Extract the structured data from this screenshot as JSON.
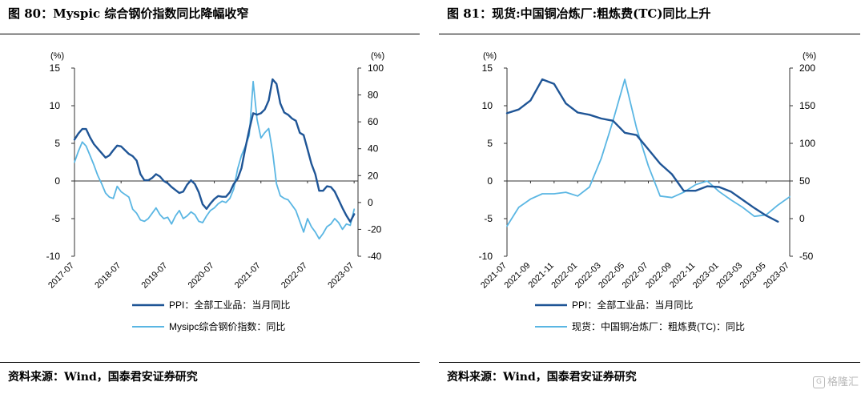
{
  "panels": [
    {
      "title": "图 80：Myspic 综合钢价指数同比降幅收窄",
      "source": "资料来源：Wind，国泰君安证券研究"
    },
    {
      "title": "图 81：现货:中国铜冶炼厂:粗炼费(TC)同比上升",
      "source": "资料来源：Wind，国泰君安证券研究"
    }
  ],
  "watermark": {
    "icon": "G",
    "text": "格隆汇"
  },
  "chart_data": [
    {
      "type": "line",
      "left_axis": {
        "unit": "(%)",
        "ylim": [
          -10,
          15
        ],
        "ticks": [
          -10,
          -5,
          0,
          5,
          10,
          15
        ]
      },
      "right_axis": {
        "unit": "(%)",
        "ylim": [
          -40,
          100
        ],
        "ticks": [
          -40,
          -20,
          0,
          20,
          40,
          60,
          80,
          100
        ]
      },
      "xlim": [
        "2017-07",
        "2023-08"
      ],
      "x_ticks": [
        "2017-07",
        "2018-07",
        "2019-07",
        "2020-07",
        "2021-07",
        "2022-07",
        "2023-07"
      ],
      "grid": false,
      "legend_position": "bottom",
      "colors": {
        "primary": "#1f5596",
        "secondary": "#5ab6e3"
      },
      "series": [
        {
          "name": "PPI：全部工业品：当月同比",
          "axis": "left",
          "color": "#1f5596",
          "points": [
            [
              "2017-07",
              5.5
            ],
            [
              "2017-08",
              6.3
            ],
            [
              "2017-09",
              6.9
            ],
            [
              "2017-10",
              6.9
            ],
            [
              "2017-11",
              5.8
            ],
            [
              "2017-12",
              4.9
            ],
            [
              "2018-01",
              4.3
            ],
            [
              "2018-02",
              3.7
            ],
            [
              "2018-03",
              3.1
            ],
            [
              "2018-04",
              3.4
            ],
            [
              "2018-05",
              4.1
            ],
            [
              "2018-06",
              4.7
            ],
            [
              "2018-07",
              4.6
            ],
            [
              "2018-08",
              4.1
            ],
            [
              "2018-09",
              3.6
            ],
            [
              "2018-10",
              3.3
            ],
            [
              "2018-11",
              2.7
            ],
            [
              "2018-12",
              0.9
            ],
            [
              "2019-01",
              0.1
            ],
            [
              "2019-02",
              0.1
            ],
            [
              "2019-03",
              0.4
            ],
            [
              "2019-04",
              0.9
            ],
            [
              "2019-05",
              0.6
            ],
            [
              "2019-06",
              0.0
            ],
            [
              "2019-07",
              -0.3
            ],
            [
              "2019-08",
              -0.8
            ],
            [
              "2019-09",
              -1.2
            ],
            [
              "2019-10",
              -1.6
            ],
            [
              "2019-11",
              -1.4
            ],
            [
              "2019-12",
              -0.5
            ],
            [
              "2020-01",
              0.1
            ],
            [
              "2020-02",
              -0.4
            ],
            [
              "2020-03",
              -1.5
            ],
            [
              "2020-04",
              -3.1
            ],
            [
              "2020-05",
              -3.7
            ],
            [
              "2020-06",
              -3.0
            ],
            [
              "2020-07",
              -2.4
            ],
            [
              "2020-08",
              -2.0
            ],
            [
              "2020-09",
              -2.1
            ],
            [
              "2020-10",
              -2.1
            ],
            [
              "2020-11",
              -1.5
            ],
            [
              "2020-12",
              -0.4
            ],
            [
              "2021-01",
              0.3
            ],
            [
              "2021-02",
              1.7
            ],
            [
              "2021-03",
              4.4
            ],
            [
              "2021-04",
              6.8
            ],
            [
              "2021-05",
              9.0
            ],
            [
              "2021-06",
              8.8
            ],
            [
              "2021-07",
              9.0
            ],
            [
              "2021-08",
              9.5
            ],
            [
              "2021-09",
              10.7
            ],
            [
              "2021-10",
              13.5
            ],
            [
              "2021-11",
              12.9
            ],
            [
              "2021-12",
              10.3
            ],
            [
              "2022-01",
              9.1
            ],
            [
              "2022-02",
              8.8
            ],
            [
              "2022-03",
              8.3
            ],
            [
              "2022-04",
              8.0
            ],
            [
              "2022-05",
              6.4
            ],
            [
              "2022-06",
              6.1
            ],
            [
              "2022-07",
              4.2
            ],
            [
              "2022-08",
              2.3
            ],
            [
              "2022-09",
              0.9
            ],
            [
              "2022-10",
              -1.3
            ],
            [
              "2022-11",
              -1.3
            ],
            [
              "2022-12",
              -0.7
            ],
            [
              "2023-01",
              -0.8
            ],
            [
              "2023-02",
              -1.4
            ],
            [
              "2023-03",
              -2.5
            ],
            [
              "2023-04",
              -3.6
            ],
            [
              "2023-05",
              -4.6
            ],
            [
              "2023-06",
              -5.4
            ],
            [
              "2023-07",
              -4.4
            ]
          ]
        },
        {
          "name": "Mysipc综合钢价指数：同比",
          "axis": "right",
          "color": "#5ab6e3",
          "points": [
            [
              "2017-07",
              30
            ],
            [
              "2017-08",
              38
            ],
            [
              "2017-09",
              45
            ],
            [
              "2017-10",
              42
            ],
            [
              "2017-11",
              35
            ],
            [
              "2017-12",
              28
            ],
            [
              "2018-01",
              20
            ],
            [
              "2018-02",
              14
            ],
            [
              "2018-03",
              7
            ],
            [
              "2018-04",
              4
            ],
            [
              "2018-05",
              3
            ],
            [
              "2018-06",
              12
            ],
            [
              "2018-07",
              8
            ],
            [
              "2018-08",
              6
            ],
            [
              "2018-09",
              4
            ],
            [
              "2018-10",
              -5
            ],
            [
              "2018-11",
              -8
            ],
            [
              "2018-12",
              -13
            ],
            [
              "2019-01",
              -14
            ],
            [
              "2019-02",
              -12
            ],
            [
              "2019-03",
              -8
            ],
            [
              "2019-04",
              -4
            ],
            [
              "2019-05",
              -9
            ],
            [
              "2019-06",
              -12
            ],
            [
              "2019-07",
              -11
            ],
            [
              "2019-08",
              -16
            ],
            [
              "2019-09",
              -10
            ],
            [
              "2019-10",
              -6
            ],
            [
              "2019-11",
              -12
            ],
            [
              "2019-12",
              -10
            ],
            [
              "2020-01",
              -7
            ],
            [
              "2020-02",
              -9
            ],
            [
              "2020-03",
              -14
            ],
            [
              "2020-04",
              -15
            ],
            [
              "2020-05",
              -10
            ],
            [
              "2020-06",
              -6
            ],
            [
              "2020-07",
              -4
            ],
            [
              "2020-08",
              -1
            ],
            [
              "2020-09",
              1
            ],
            [
              "2020-10",
              0
            ],
            [
              "2020-11",
              3
            ],
            [
              "2020-12",
              10
            ],
            [
              "2021-01",
              25
            ],
            [
              "2021-02",
              35
            ],
            [
              "2021-03",
              42
            ],
            [
              "2021-04",
              50
            ],
            [
              "2021-05",
              90
            ],
            [
              "2021-06",
              62
            ],
            [
              "2021-07",
              48
            ],
            [
              "2021-08",
              52
            ],
            [
              "2021-09",
              55
            ],
            [
              "2021-10",
              38
            ],
            [
              "2021-11",
              14
            ],
            [
              "2021-12",
              5
            ],
            [
              "2022-01",
              3
            ],
            [
              "2022-02",
              2
            ],
            [
              "2022-03",
              -2
            ],
            [
              "2022-04",
              -6
            ],
            [
              "2022-05",
              -14
            ],
            [
              "2022-06",
              -22
            ],
            [
              "2022-07",
              -12
            ],
            [
              "2022-08",
              -18
            ],
            [
              "2022-09",
              -22
            ],
            [
              "2022-10",
              -27
            ],
            [
              "2022-11",
              -23
            ],
            [
              "2022-12",
              -18
            ],
            [
              "2023-01",
              -16
            ],
            [
              "2023-02",
              -12
            ],
            [
              "2023-03",
              -15
            ],
            [
              "2023-04",
              -20
            ],
            [
              "2023-05",
              -16
            ],
            [
              "2023-06",
              -17
            ],
            [
              "2023-07",
              -5
            ]
          ]
        }
      ]
    },
    {
      "type": "line",
      "left_axis": {
        "unit": "(%)",
        "ylim": [
          -10,
          15
        ],
        "ticks": [
          -10,
          -5,
          0,
          5,
          10,
          15
        ]
      },
      "right_axis": {
        "unit": "(%)",
        "ylim": [
          -50,
          200
        ],
        "ticks": [
          -50,
          0,
          50,
          100,
          150,
          200
        ]
      },
      "xlim": [
        "2021-07",
        "2023-07"
      ],
      "x_ticks": [
        "2021-07",
        "2021-09",
        "2021-11",
        "2022-01",
        "2022-03",
        "2022-05",
        "2022-07",
        "2022-09",
        "2022-11",
        "2023-01",
        "2023-03",
        "2023-05",
        "2023-07"
      ],
      "grid": false,
      "legend_position": "bottom",
      "colors": {
        "primary": "#1f5596",
        "secondary": "#5ab6e3"
      },
      "series": [
        {
          "name": "PPI：全部工业品：当月同比",
          "axis": "left",
          "color": "#1f5596",
          "points": [
            [
              "2021-07",
              9.0
            ],
            [
              "2021-08",
              9.5
            ],
            [
              "2021-09",
              10.7
            ],
            [
              "2021-10",
              13.5
            ],
            [
              "2021-11",
              12.9
            ],
            [
              "2021-12",
              10.3
            ],
            [
              "2022-01",
              9.1
            ],
            [
              "2022-02",
              8.8
            ],
            [
              "2022-03",
              8.3
            ],
            [
              "2022-04",
              8.0
            ],
            [
              "2022-05",
              6.4
            ],
            [
              "2022-06",
              6.1
            ],
            [
              "2022-07",
              4.2
            ],
            [
              "2022-08",
              2.3
            ],
            [
              "2022-09",
              0.9
            ],
            [
              "2022-10",
              -1.3
            ],
            [
              "2022-11",
              -1.3
            ],
            [
              "2022-12",
              -0.7
            ],
            [
              "2023-01",
              -0.8
            ],
            [
              "2023-02",
              -1.4
            ],
            [
              "2023-03",
              -2.5
            ],
            [
              "2023-04",
              -3.6
            ],
            [
              "2023-05",
              -4.6
            ],
            [
              "2023-06",
              -5.4
            ]
          ]
        },
        {
          "name": "现货：中国铜冶炼厂：粗炼费(TC)：同比",
          "axis": "right",
          "color": "#5ab6e3",
          "points": [
            [
              "2021-07",
              -10
            ],
            [
              "2021-08",
              15
            ],
            [
              "2021-09",
              26
            ],
            [
              "2021-10",
              33
            ],
            [
              "2021-11",
              33
            ],
            [
              "2021-12",
              35
            ],
            [
              "2022-01",
              30
            ],
            [
              "2022-02",
              42
            ],
            [
              "2022-03",
              80
            ],
            [
              "2022-04",
              130
            ],
            [
              "2022-05",
              185
            ],
            [
              "2022-06",
              120
            ],
            [
              "2022-07",
              70
            ],
            [
              "2022-08",
              30
            ],
            [
              "2022-09",
              28
            ],
            [
              "2022-10",
              35
            ],
            [
              "2022-11",
              45
            ],
            [
              "2022-12",
              50
            ],
            [
              "2023-01",
              36
            ],
            [
              "2023-02",
              25
            ],
            [
              "2023-03",
              15
            ],
            [
              "2023-04",
              3
            ],
            [
              "2023-05",
              5
            ],
            [
              "2023-06",
              18
            ],
            [
              "2023-07",
              29
            ]
          ]
        }
      ]
    }
  ]
}
